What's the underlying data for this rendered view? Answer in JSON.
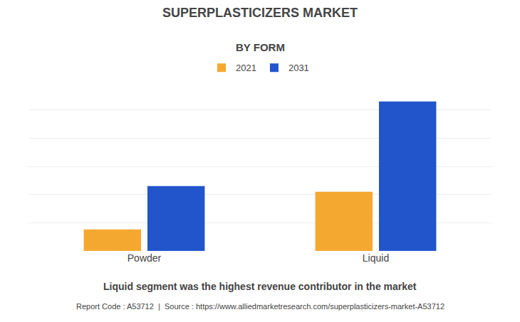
{
  "chart_data": {
    "type": "bar",
    "title": "SUPERPLASTICIZERS MARKET",
    "subtitle": "BY FORM",
    "categories": [
      "Powder",
      "Liquid"
    ],
    "series": [
      {
        "name": "2021",
        "color": "#F5A830",
        "values": [
          0.38,
          1.05
        ]
      },
      {
        "name": "2031",
        "color": "#2255CC",
        "values": [
          1.15,
          2.65
        ]
      }
    ],
    "ylim": [
      0,
      3.0
    ],
    "yticks": [
      0,
      0.5,
      1.0,
      1.5,
      2.0,
      2.5,
      3.0
    ],
    "grid": true,
    "legend": "top",
    "tick_labels": "x",
    "annotations": [
      "Liquid segment was the highest revenue contributor in the market",
      "Report Code : A53712  |  Source : https://www.alliedmarketresearch.com/superplasticizers-market-A53712"
    ]
  }
}
